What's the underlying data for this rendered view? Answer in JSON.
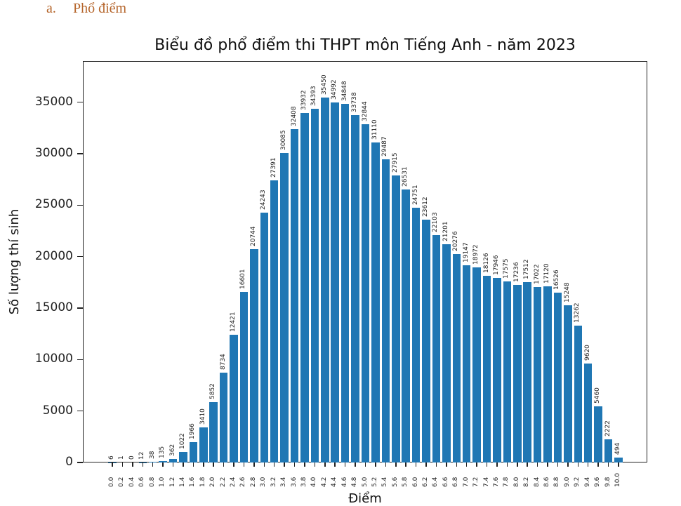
{
  "document": {
    "heading_number": "a.",
    "heading_text": "Phổ điểm"
  },
  "chart_data": {
    "type": "bar",
    "title": "Biểu đồ phổ điểm thi THPT môn Tiếng Anh - năm 2023",
    "xlabel": "Điểm",
    "ylabel": "Số lượng thí sinh",
    "categories": [
      "0.0",
      "0.2",
      "0.4",
      "0.6",
      "0.8",
      "1.0",
      "1.2",
      "1.4",
      "1.6",
      "1.8",
      "2.0",
      "2.2",
      "2.4",
      "2.6",
      "2.8",
      "3.0",
      "3.2",
      "3.4",
      "3.6",
      "3.8",
      "4.0",
      "4.2",
      "4.4",
      "4.6",
      "4.8",
      "5.0",
      "5.2",
      "5.4",
      "5.6",
      "5.8",
      "6.0",
      "6.2",
      "6.4",
      "6.6",
      "6.8",
      "7.0",
      "7.2",
      "7.4",
      "7.6",
      "7.8",
      "8.0",
      "8.2",
      "8.4",
      "8.6",
      "8.8",
      "9.0",
      "9.2",
      "9.4",
      "9.6",
      "9.8",
      "10.0"
    ],
    "values": [
      6,
      1,
      0,
      12,
      38,
      135,
      362,
      1022,
      1966,
      3410,
      5852,
      8734,
      12421,
      16601,
      20744,
      24243,
      27391,
      30085,
      32408,
      33932,
      34393,
      35450,
      34992,
      34848,
      33738,
      32844,
      31110,
      29487,
      27915,
      26531,
      24751,
      23612,
      22103,
      21201,
      20276,
      19147,
      18972,
      18126,
      17946,
      17575,
      17236,
      17512,
      17022,
      17120,
      16526,
      15248,
      13262,
      9620,
      5460,
      2222,
      494
    ],
    "yticks": [
      0,
      5000,
      10000,
      15000,
      20000,
      25000,
      30000,
      35000
    ],
    "ylim": [
      0,
      39000
    ],
    "grid": false,
    "legend": null,
    "bar_color": "#1f77b4",
    "data_labels": true
  }
}
